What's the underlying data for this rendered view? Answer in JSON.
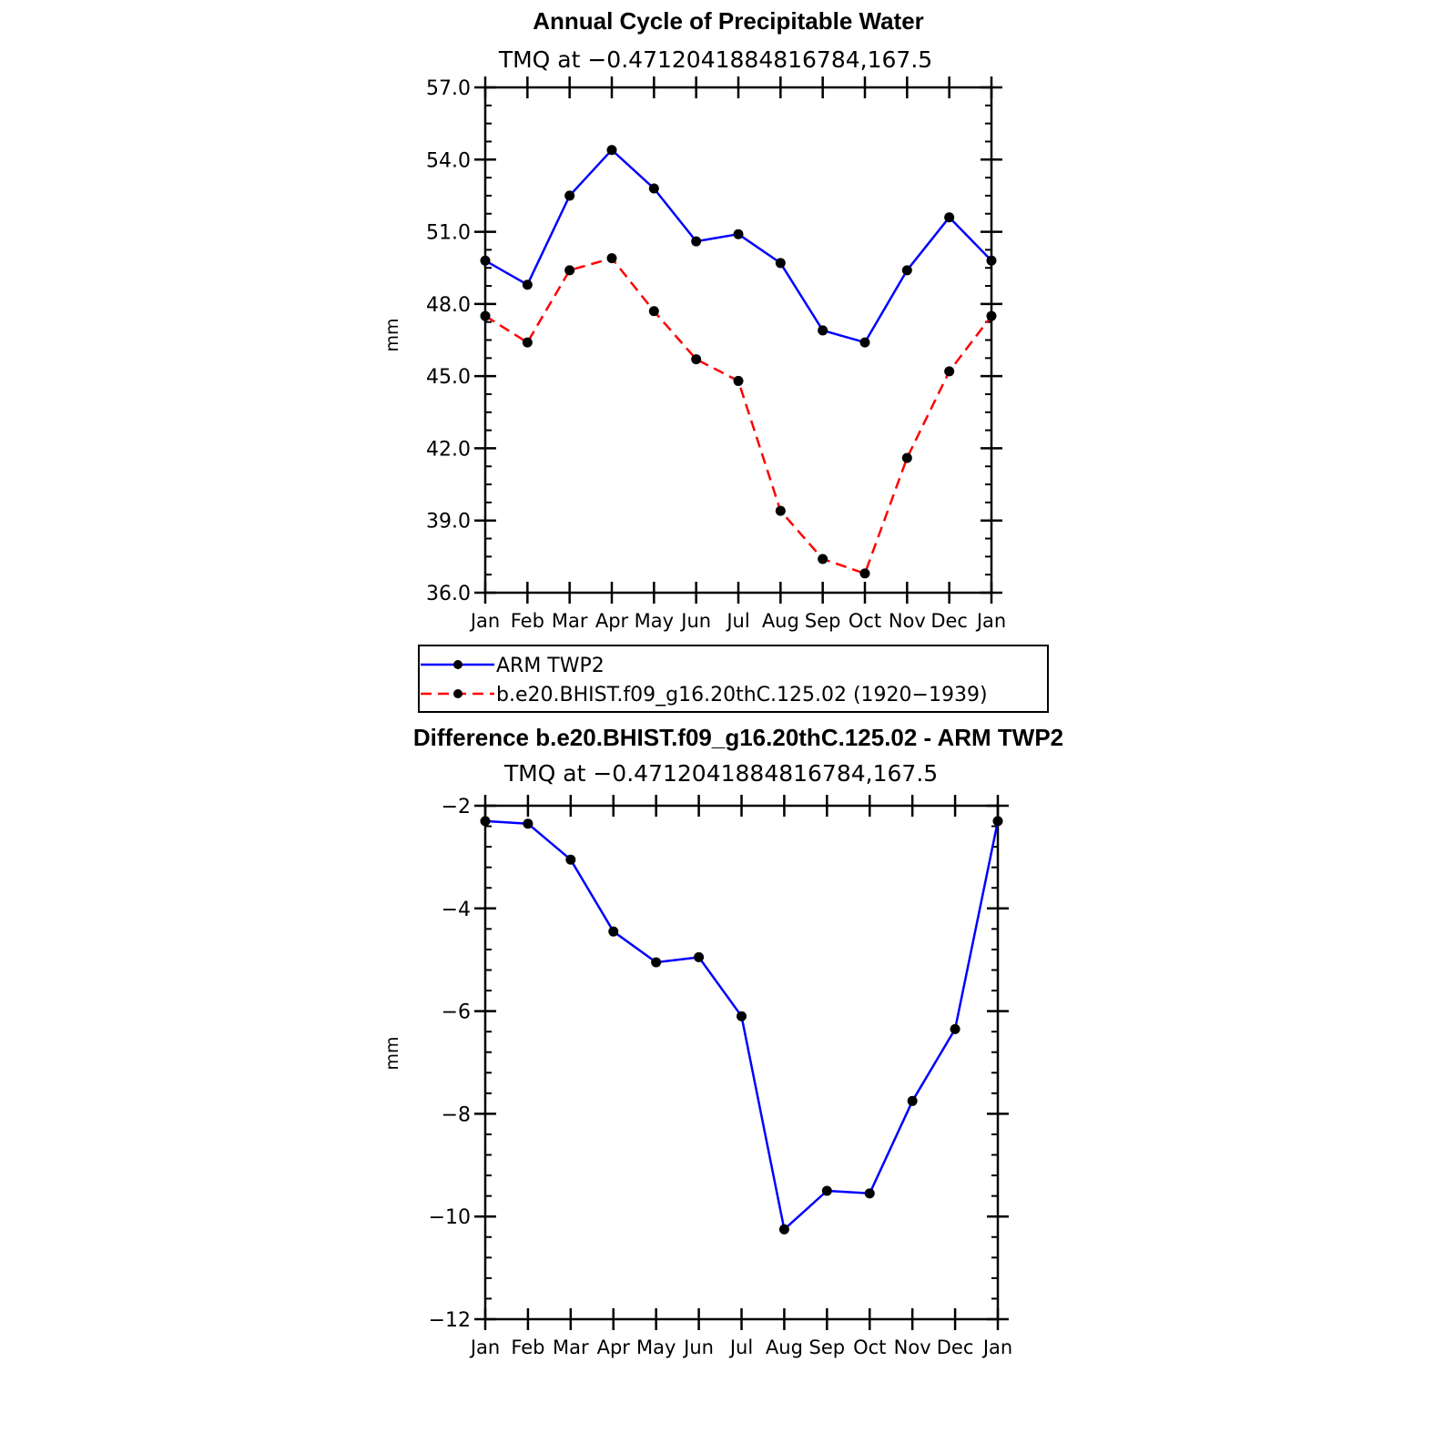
{
  "colors": {
    "series_1": "#0000ff",
    "series_2": "#ff0000",
    "marker": "#000000",
    "axis": "#000000"
  },
  "chart_data": [
    {
      "type": "line",
      "title": "Annual Cycle of Precipitable Water",
      "subtitle": "TMQ at −0.4712041884816784,167.5",
      "xlabel": "",
      "ylabel": "mm",
      "ylim": [
        36.0,
        57.0
      ],
      "yticks": [
        "57.0",
        "54.0",
        "51.0",
        "48.0",
        "45.0",
        "42.0",
        "39.0",
        "36.0"
      ],
      "categories": [
        "Jan",
        "Feb",
        "Mar",
        "Apr",
        "May",
        "Jun",
        "Jul",
        "Aug",
        "Sep",
        "Oct",
        "Nov",
        "Dec",
        "Jan"
      ],
      "grid": false,
      "legend": "below",
      "series": [
        {
          "name": "ARM TWP2",
          "style": "solid",
          "color": "#0000ff",
          "values": [
            49.8,
            48.8,
            52.5,
            54.4,
            52.8,
            50.6,
            50.9,
            49.7,
            46.9,
            46.4,
            49.4,
            51.6,
            49.8
          ]
        },
        {
          "name": "b.e20.BHIST.f09_g16.20thC.125.02 (1920−1939)",
          "style": "dashed",
          "color": "#ff0000",
          "values": [
            47.5,
            46.4,
            49.4,
            49.9,
            47.7,
            45.7,
            44.8,
            39.4,
            37.4,
            36.8,
            41.6,
            45.2,
            47.5
          ]
        }
      ]
    },
    {
      "type": "line",
      "title": "Difference b.e20.BHIST.f09_g16.20thC.125.02 - ARM TWP2",
      "subtitle": "TMQ at −0.4712041884816784,167.5",
      "xlabel": "",
      "ylabel": "mm",
      "ylim": [
        -12,
        -2
      ],
      "yticks": [
        "−2",
        "−4",
        "−6",
        "−8",
        "−10",
        "−12"
      ],
      "categories": [
        "Jan",
        "Feb",
        "Mar",
        "Apr",
        "May",
        "Jun",
        "Jul",
        "Aug",
        "Sep",
        "Oct",
        "Nov",
        "Dec",
        "Jan"
      ],
      "grid": false,
      "series": [
        {
          "style": "solid",
          "color": "#0000ff",
          "values": [
            -2.3,
            -2.35,
            -3.05,
            -4.45,
            -5.05,
            -4.95,
            -6.1,
            -10.25,
            -9.5,
            -9.55,
            -7.75,
            -6.35,
            -2.3
          ]
        }
      ]
    }
  ]
}
